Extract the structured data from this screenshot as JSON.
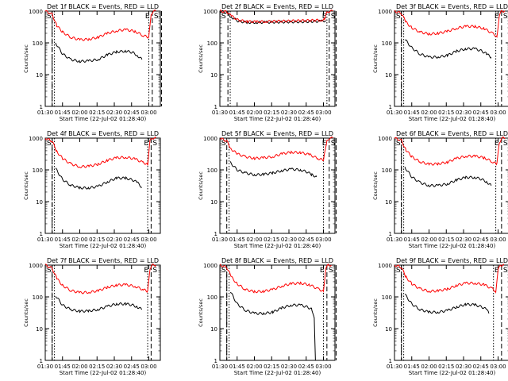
{
  "figure": {
    "ylabel": "Counts/sec",
    "xlabel": "Start Time (22-Jul-02 01:28:40)",
    "x_ticks": [
      "01:30",
      "01:45",
      "02:00",
      "02:15",
      "02:30",
      "02:45",
      "03:00"
    ],
    "y_ticks": [
      "1",
      "10",
      "100",
      "1000"
    ],
    "markers": {
      "start": "S",
      "end": "E"
    },
    "colors": {
      "events": "#000000",
      "lld": "#ff0000"
    }
  },
  "chart_data": [
    {
      "type": "line",
      "title": "Det 1f BLACK = Events, RED = LLD",
      "xlabel": "Start Time (22-Jul-02 01:28:40)",
      "ylabel": "Counts/sec",
      "ylim": [
        1,
        1000
      ],
      "xlim_min": [
        90,
        190
      ],
      "vlines": {
        "dash": [
          96,
          183,
          191
        ],
        "dot": [
          98,
          180
        ],
        "dashdot": [
          96
        ]
      },
      "series": [
        {
          "name": "Events",
          "color": "#000000",
          "x": [
            99,
            105,
            112,
            120,
            128,
            136,
            144,
            152,
            160,
            166,
            170,
            174
          ],
          "values": [
            100,
            45,
            30,
            26,
            27,
            30,
            42,
            52,
            55,
            50,
            40,
            30
          ]
        },
        {
          "name": "LLD",
          "color": "#ff0000",
          "x": [
            90,
            96,
            100,
            105,
            112,
            120,
            128,
            136,
            144,
            152,
            160,
            168,
            175,
            180,
            182,
            184,
            186
          ],
          "values": [
            1000,
            800,
            350,
            220,
            150,
            125,
            130,
            150,
            200,
            240,
            260,
            230,
            170,
            150,
            800,
            1000,
            1000
          ]
        }
      ]
    },
    {
      "type": "line",
      "title": "Det 2f BLACK = Events, RED = LLD",
      "xlabel": "Start Time (22-Jul-02 01:28:40)",
      "ylabel": "Counts/sec",
      "ylim": [
        1,
        1000
      ],
      "xlim_min": [
        90,
        190
      ],
      "vlines": {
        "dash": [
          97,
          185,
          191
        ],
        "dot": [
          99,
          183
        ],
        "dashdot": []
      },
      "series": [
        {
          "name": "Events",
          "color": "#000000",
          "x": [
            90,
            96,
            100,
            106,
            114,
            122,
            130,
            140,
            150,
            160,
            170,
            178,
            182
          ],
          "values": [
            1000,
            900,
            650,
            480,
            440,
            440,
            445,
            450,
            455,
            460,
            470,
            480,
            500
          ]
        },
        {
          "name": "LLD",
          "color": "#ff0000",
          "x": [
            90,
            96,
            100,
            106,
            114,
            122,
            130,
            140,
            150,
            160,
            170,
            178,
            181,
            183,
            185,
            188
          ],
          "values": [
            1000,
            950,
            700,
            520,
            470,
            460,
            470,
            480,
            490,
            500,
            510,
            520,
            540,
            900,
            1000,
            1000
          ]
        }
      ]
    },
    {
      "type": "line",
      "title": "Det 3f BLACK = Events, RED = LLD",
      "xlabel": "Start Time (22-Jul-02 01:28:40)",
      "ylabel": "Counts/sec",
      "ylim": [
        1,
        1000
      ],
      "xlim_min": [
        90,
        190
      ],
      "vlines": {
        "dash": [
          96,
          183,
          190
        ],
        "dot": [
          98,
          178
        ],
        "dashdot": [
          96
        ]
      },
      "series": [
        {
          "name": "Events",
          "color": "#000000",
          "x": [
            99,
            105,
            112,
            120,
            128,
            136,
            144,
            152,
            160,
            166,
            170,
            174
          ],
          "values": [
            130,
            70,
            45,
            35,
            36,
            40,
            55,
            65,
            65,
            55,
            45,
            35
          ]
        },
        {
          "name": "LLD",
          "color": "#ff0000",
          "x": [
            90,
            96,
            100,
            105,
            112,
            120,
            128,
            136,
            144,
            152,
            160,
            168,
            175,
            179,
            181,
            183,
            186
          ],
          "values": [
            1000,
            850,
            450,
            300,
            220,
            190,
            200,
            230,
            290,
            330,
            330,
            280,
            200,
            160,
            700,
            1000,
            1000
          ]
        }
      ]
    },
    {
      "type": "line",
      "title": "Det 4f BLACK = Events, RED = LLD",
      "xlabel": "Start Time (22-Jul-02 01:28:40)",
      "ylabel": "Counts/sec",
      "ylim": [
        1,
        1000
      ],
      "xlim_min": [
        90,
        190
      ],
      "vlines": {
        "dash": [
          96,
          182,
          190
        ],
        "dot": [
          98,
          179
        ],
        "dashdot": [
          96
        ]
      },
      "series": [
        {
          "name": "Events",
          "color": "#000000",
          "x": [
            99,
            105,
            112,
            120,
            128,
            136,
            144,
            152,
            160,
            166,
            170,
            174
          ],
          "values": [
            110,
            50,
            33,
            27,
            27,
            30,
            42,
            55,
            55,
            48,
            40,
            28
          ]
        },
        {
          "name": "LLD",
          "color": "#ff0000",
          "x": [
            90,
            96,
            100,
            105,
            112,
            120,
            128,
            136,
            144,
            152,
            160,
            168,
            175,
            179,
            181,
            183,
            186
          ],
          "values": [
            1000,
            800,
            380,
            230,
            155,
            125,
            130,
            150,
            200,
            240,
            250,
            220,
            170,
            150,
            800,
            1000,
            1000
          ]
        }
      ]
    },
    {
      "type": "line",
      "title": "Det 5f BLACK = Events, RED = LLD",
      "xlabel": "Start Time (22-Jul-02 01:28:40)",
      "ylabel": "Counts/sec",
      "ylim": [
        1,
        1000
      ],
      "xlim_min": [
        90,
        190
      ],
      "vlines": {
        "dash": [
          96,
          185,
          191
        ],
        "dot": [
          98,
          180
        ],
        "dashdot": []
      },
      "series": [
        {
          "name": "Events",
          "color": "#000000",
          "x": [
            99,
            105,
            112,
            120,
            128,
            136,
            144,
            152,
            160,
            166,
            170,
            174
          ],
          "values": [
            170,
            100,
            80,
            70,
            72,
            80,
            95,
            105,
            100,
            85,
            70,
            60
          ]
        },
        {
          "name": "LLD",
          "color": "#ff0000",
          "x": [
            90,
            96,
            100,
            105,
            112,
            120,
            128,
            136,
            144,
            152,
            160,
            168,
            175,
            180,
            183,
            185,
            188
          ],
          "values": [
            1000,
            800,
            450,
            320,
            260,
            230,
            240,
            260,
            320,
            360,
            350,
            300,
            230,
            200,
            800,
            1000,
            1000
          ]
        }
      ]
    },
    {
      "type": "line",
      "title": "Det 6f BLACK = Events, RED = LLD",
      "xlabel": "Start Time (22-Jul-02 01:28:40)",
      "ylabel": "Counts/sec",
      "ylim": [
        1,
        1000
      ],
      "xlim_min": [
        90,
        190
      ],
      "vlines": {
        "dash": [
          96,
          183,
          190
        ],
        "dot": [
          98,
          178
        ],
        "dashdot": [
          96
        ]
      },
      "series": [
        {
          "name": "Events",
          "color": "#000000",
          "x": [
            99,
            105,
            112,
            120,
            128,
            136,
            144,
            152,
            160,
            166,
            170,
            174
          ],
          "values": [
            120,
            60,
            40,
            32,
            32,
            36,
            48,
            58,
            58,
            50,
            42,
            32
          ]
        },
        {
          "name": "LLD",
          "color": "#ff0000",
          "x": [
            90,
            96,
            100,
            105,
            112,
            120,
            128,
            136,
            144,
            152,
            160,
            168,
            175,
            179,
            181,
            183,
            186
          ],
          "values": [
            1000,
            850,
            420,
            260,
            180,
            150,
            155,
            175,
            230,
            270,
            270,
            240,
            180,
            150,
            700,
            1000,
            1000
          ]
        }
      ]
    },
    {
      "type": "line",
      "title": "Det 7f BLACK = Events, RED = LLD",
      "xlabel": "Start Time (22-Jul-02 01:28:40)",
      "ylabel": "Counts/sec",
      "ylim": [
        1,
        1000
      ],
      "xlim_min": [
        90,
        190
      ],
      "vlines": {
        "dash": [
          96,
          182,
          190
        ],
        "dot": [
          98,
          179
        ],
        "dashdot": [
          96
        ]
      },
      "series": [
        {
          "name": "Events",
          "color": "#000000",
          "x": [
            99,
            105,
            112,
            120,
            128,
            136,
            144,
            152,
            160,
            166,
            170,
            174
          ],
          "values": [
            110,
            55,
            40,
            35,
            36,
            40,
            50,
            60,
            60,
            55,
            48,
            40
          ]
        },
        {
          "name": "LLD",
          "color": "#ff0000",
          "x": [
            90,
            96,
            100,
            105,
            112,
            120,
            128,
            136,
            144,
            152,
            160,
            168,
            175,
            179,
            181,
            183,
            186
          ],
          "values": [
            1000,
            800,
            380,
            230,
            160,
            135,
            140,
            155,
            200,
            235,
            240,
            215,
            170,
            150,
            800,
            1000,
            1000
          ]
        }
      ]
    },
    {
      "type": "line",
      "title": "Det 8f BLACK = Events, RED = LLD",
      "xlabel": "Start Time (22-Jul-02 01:28:40)",
      "ylabel": "Counts/sec",
      "ylim": [
        1,
        1000
      ],
      "xlim_min": [
        90,
        190
      ],
      "vlines": {
        "dash": [
          96,
          183,
          191
        ],
        "dot": [
          98,
          180
        ],
        "dashdot": [
          96
        ]
      },
      "series": [
        {
          "name": "Events",
          "color": "#000000",
          "x": [
            99,
            105,
            112,
            120,
            128,
            136,
            144,
            152,
            160,
            166,
            170,
            172,
            173
          ],
          "values": [
            150,
            60,
            38,
            30,
            30,
            33,
            45,
            55,
            55,
            48,
            40,
            20,
            1
          ]
        },
        {
          "name": "LLD",
          "color": "#ff0000",
          "x": [
            90,
            96,
            100,
            105,
            112,
            120,
            128,
            136,
            144,
            152,
            160,
            168,
            175,
            180,
            182,
            184,
            187
          ],
          "values": [
            1000,
            850,
            420,
            260,
            170,
            145,
            150,
            170,
            220,
            260,
            270,
            240,
            180,
            150,
            800,
            1000,
            1000
          ]
        }
      ]
    },
    {
      "type": "line",
      "title": "Det 9f BLACK = Events, RED = LLD",
      "xlabel": "Start Time (22-Jul-02 01:28:40)",
      "ylabel": "Counts/sec",
      "ylim": [
        1,
        1000
      ],
      "xlim_min": [
        90,
        190
      ],
      "vlines": {
        "dash": [
          96,
          183,
          190
        ],
        "dot": [
          98,
          176
        ],
        "dashdot": [
          96
        ]
      },
      "series": [
        {
          "name": "Events",
          "color": "#000000",
          "x": [
            99,
            105,
            112,
            120,
            128,
            136,
            144,
            152,
            160,
            166,
            170,
            172
          ],
          "values": [
            120,
            60,
            40,
            33,
            33,
            37,
            48,
            58,
            56,
            48,
            40,
            30
          ]
        },
        {
          "name": "LLD",
          "color": "#ff0000",
          "x": [
            90,
            96,
            100,
            105,
            112,
            120,
            128,
            136,
            144,
            152,
            160,
            168,
            175,
            178,
            180,
            182,
            185
          ],
          "values": [
            1000,
            850,
            420,
            260,
            180,
            150,
            155,
            175,
            230,
            270,
            270,
            240,
            180,
            150,
            700,
            1000,
            1000
          ]
        }
      ]
    }
  ]
}
